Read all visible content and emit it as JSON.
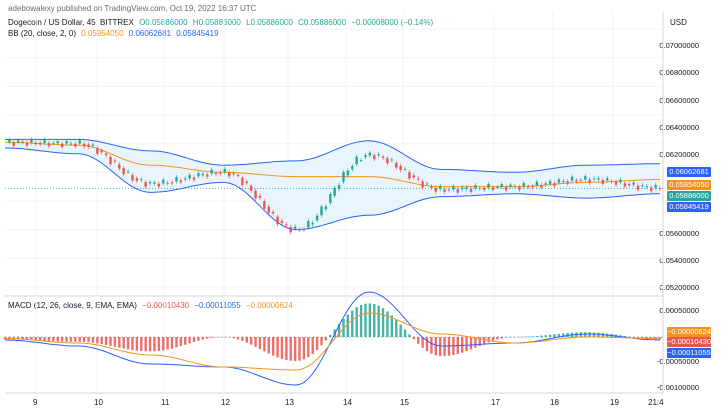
{
  "caption": "adebowalexy published on TradingView.com, Oct 19, 2022 16:37 UTC",
  "main_pane": {
    "symbol": "Dogecoin / US Dollar, 45, BITTREX",
    "open": "O0.05886000",
    "high": "H0.05886000",
    "low": "L0.05886000",
    "close": "C0.05886000",
    "change": "−0.00008000 (−0.14%)",
    "bb_label": "BB (20, close, 2, 0)",
    "bb_basis": "0.05954050",
    "bb_upper": "0.06062681",
    "bb_lower": "0.05845419"
  },
  "price_axis": {
    "currency": "USD",
    "ticks": [
      "0.07000000",
      "0.06800000",
      "0.06600000",
      "0.06400000",
      "0.06200000",
      "0.05600000",
      "0.05400000",
      "0.05200000"
    ]
  },
  "badges": [
    {
      "text": "0.06062681",
      "color": "#2962ff"
    },
    {
      "text": "0.05954050",
      "color": "#f7931a"
    },
    {
      "text": "0.05886000",
      "color": "#26a69a"
    },
    {
      "text": "0.05845419",
      "color": "#2962ff"
    }
  ],
  "macd_pane": {
    "label": "MACD (12, 26, close, 9, EMA, EMA)",
    "hist": "−0.00010430",
    "macd": "−0.00011055",
    "signal": "−0.00000624",
    "ticks": [
      "0.00050000",
      "-0.00050000",
      "-0.00100000"
    ],
    "badges": [
      {
        "text": "−0.00000624",
        "color": "#f7931a"
      },
      {
        "text": "−0.00010430",
        "color": "#ef5350"
      },
      {
        "text": "−0.00011055",
        "color": "#2962ff"
      }
    ]
  },
  "date_axis": [
    "9",
    "10",
    "11",
    "12",
    "13",
    "14",
    "15",
    "17",
    "18",
    "19",
    "21:4"
  ],
  "colors": {
    "up": "#26a69a",
    "down": "#ef5350",
    "bb_band": "#2962ff",
    "bb_basis": "#f7931a",
    "bb_fill": "#e3f2fd",
    "macd_line": "#2962ff",
    "signal_line": "#f7931a"
  },
  "chart_data": {
    "type": "line",
    "title": "Dogecoin / US Dollar, 45, BITTREX",
    "xlabel": "",
    "ylabel": "USD",
    "x": [
      "9",
      "10",
      "11",
      "12",
      "13",
      "14",
      "15",
      "17",
      "18",
      "19"
    ],
    "series": [
      {
        "name": "BB upper",
        "values": [
          0.0623,
          0.0623,
          0.0615,
          0.0605,
          0.0608,
          0.0622,
          0.0602,
          0.06,
          0.0605,
          0.0606
        ]
      },
      {
        "name": "BB basis",
        "values": [
          0.0621,
          0.0619,
          0.0605,
          0.06,
          0.0597,
          0.0597,
          0.059,
          0.059,
          0.0593,
          0.0595
        ]
      },
      {
        "name": "BB lower",
        "values": [
          0.0617,
          0.0613,
          0.0586,
          0.0593,
          0.056,
          0.057,
          0.0583,
          0.0585,
          0.0582,
          0.0585
        ]
      },
      {
        "name": "close",
        "values": [
          0.0621,
          0.062,
          0.0592,
          0.06,
          0.056,
          0.0612,
          0.0588,
          0.059,
          0.0595,
          0.0589
        ]
      }
    ],
    "ylim": [
      0.0515,
      0.0712
    ],
    "grid": true
  }
}
